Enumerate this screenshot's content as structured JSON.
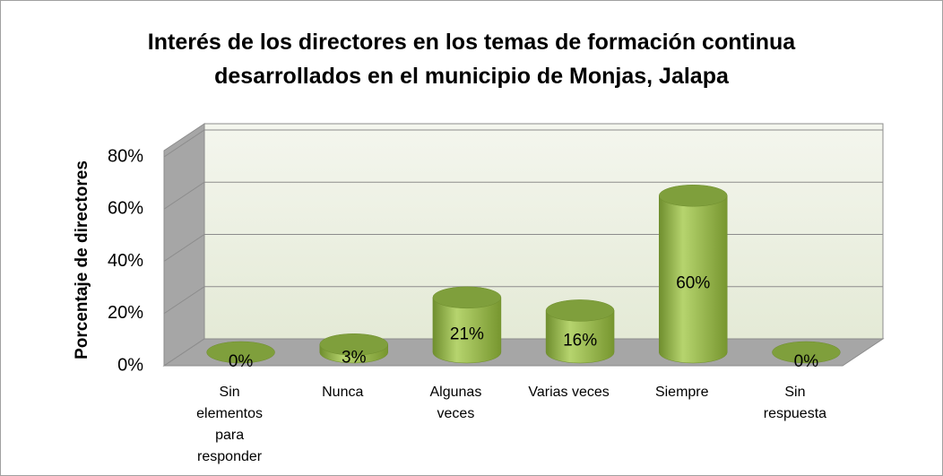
{
  "chart_data": {
    "type": "bar3d",
    "title": "Interés de los directores en los temas de formación continua desarrollados en el municipio de Monjas, Jalapa",
    "y_label": "Porcentaje de directores",
    "categories": [
      "Sin elementos para responder",
      "Nunca",
      "Algunas veces",
      "Varias veces",
      "Siempre",
      "Sin respuesta"
    ],
    "values": [
      0,
      3,
      21,
      16,
      60,
      0
    ],
    "value_labels": [
      "0%",
      "3%",
      "21%",
      "16%",
      "60%",
      "0%"
    ],
    "color": "#9bbb59",
    "ylim": [
      0,
      80
    ],
    "yticks": [
      {
        "value": 0,
        "label": "0%"
      },
      {
        "value": 20,
        "label": "20%"
      },
      {
        "value": 40,
        "label": "40%"
      },
      {
        "value": 60,
        "label": "60%"
      },
      {
        "value": 80,
        "label": "80%"
      }
    ],
    "grid": true
  }
}
